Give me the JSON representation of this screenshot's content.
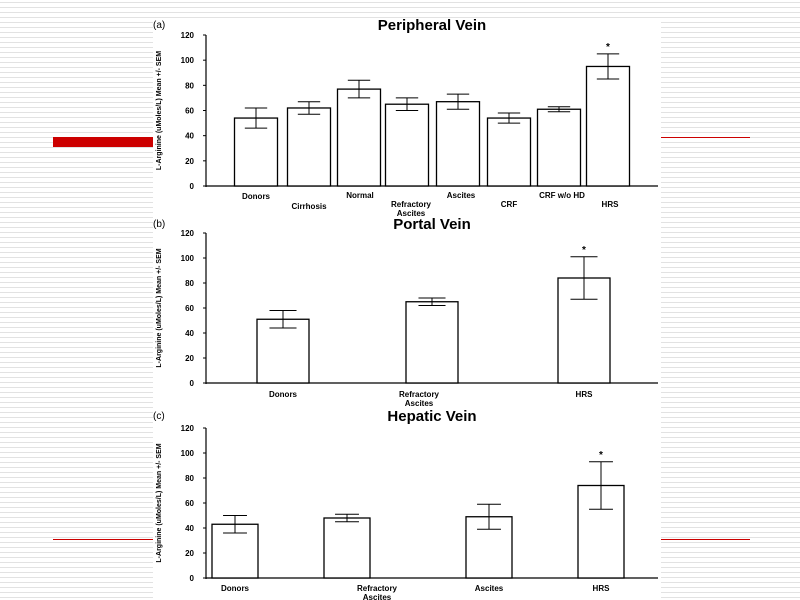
{
  "chart_data": [
    {
      "type": "bar",
      "panel_label": "(a)",
      "title": "Peripheral Vein",
      "ylabel": "L-Arginine (uMoles/L) Mean +/- SEM",
      "xlabel": "",
      "ylim": [
        0,
        120
      ],
      "yticks": [
        "0",
        "20",
        "40",
        "60",
        "80",
        "100",
        "120"
      ],
      "categories": [
        "Donors",
        "Cirrhosis",
        "Normal",
        "Refractory Ascites",
        "Ascites",
        "CRF",
        "CRF w/o HD",
        "HRS"
      ],
      "values": [
        54,
        62,
        77,
        65,
        67,
        54,
        61,
        95
      ],
      "errors": [
        8,
        5,
        7,
        5,
        6,
        4,
        2,
        10
      ],
      "annotations": [
        "",
        "",
        "",
        "",
        "",
        "",
        "",
        "*"
      ],
      "grid": false
    },
    {
      "type": "bar",
      "panel_label": "(b)",
      "title": "Portal Vein",
      "ylabel": "L-Arginine (uMoles/L) Mean +/- SEM",
      "xlabel": "",
      "ylim": [
        0,
        120
      ],
      "yticks": [
        "0",
        "20",
        "40",
        "60",
        "80",
        "100",
        "120"
      ],
      "categories": [
        "Donors",
        "Refractory Ascites",
        "HRS"
      ],
      "values": [
        51,
        65,
        84
      ],
      "errors": [
        7,
        3,
        17
      ],
      "annotations": [
        "",
        "",
        "*"
      ],
      "grid": false
    },
    {
      "type": "bar",
      "panel_label": "(c)",
      "title": "Hepatic Vein",
      "ylabel": "L-Arginine (uMoles/L) Mean +/- SEM",
      "xlabel": "",
      "ylim": [
        0,
        120
      ],
      "yticks": [
        "0",
        "20",
        "40",
        "60",
        "80",
        "100",
        "120"
      ],
      "categories": [
        "Donors",
        "Refractory Ascites",
        "Ascites",
        "HRS"
      ],
      "values": [
        43,
        48,
        49,
        74
      ],
      "errors": [
        7,
        3,
        10,
        19
      ],
      "annotations": [
        "",
        "",
        "",
        "*"
      ],
      "grid": false
    }
  ],
  "colors": {
    "accent_red": "#cc0000",
    "bar_fill": "#ffffff",
    "bar_stroke": "#000000"
  }
}
